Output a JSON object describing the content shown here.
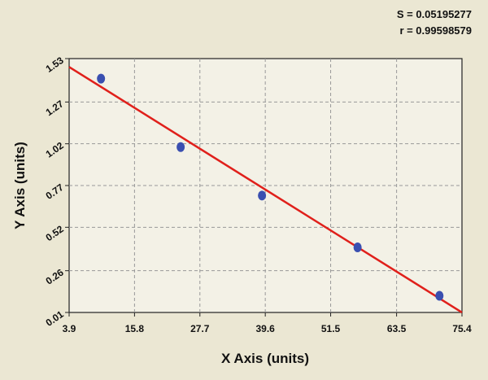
{
  "chart_data": {
    "type": "scatter",
    "x_label": "X Axis (units)",
    "y_label": "Y Axis (units)",
    "annotations": [
      "S = 0.05195277",
      "r = 0.99598579"
    ],
    "x": [
      9.7,
      24.2,
      39.0,
      56.4,
      71.3
    ],
    "values": [
      1.41,
      1.0,
      0.71,
      0.4,
      0.11
    ],
    "color": "#3a4fb0",
    "fit": {
      "x": [
        3.9,
        75.4
      ],
      "values": [
        1.48,
        0.01
      ],
      "color": "#e0201b"
    },
    "xlim": [
      3.9,
      75.4
    ],
    "xticks": [
      3.9,
      15.8,
      27.7,
      39.6,
      51.5,
      63.5,
      75.4
    ],
    "ylim": [
      0.01,
      1.53
    ],
    "yticks": [
      0.01,
      0.26,
      0.52,
      0.77,
      1.02,
      1.27,
      1.53
    ],
    "grid": true
  }
}
